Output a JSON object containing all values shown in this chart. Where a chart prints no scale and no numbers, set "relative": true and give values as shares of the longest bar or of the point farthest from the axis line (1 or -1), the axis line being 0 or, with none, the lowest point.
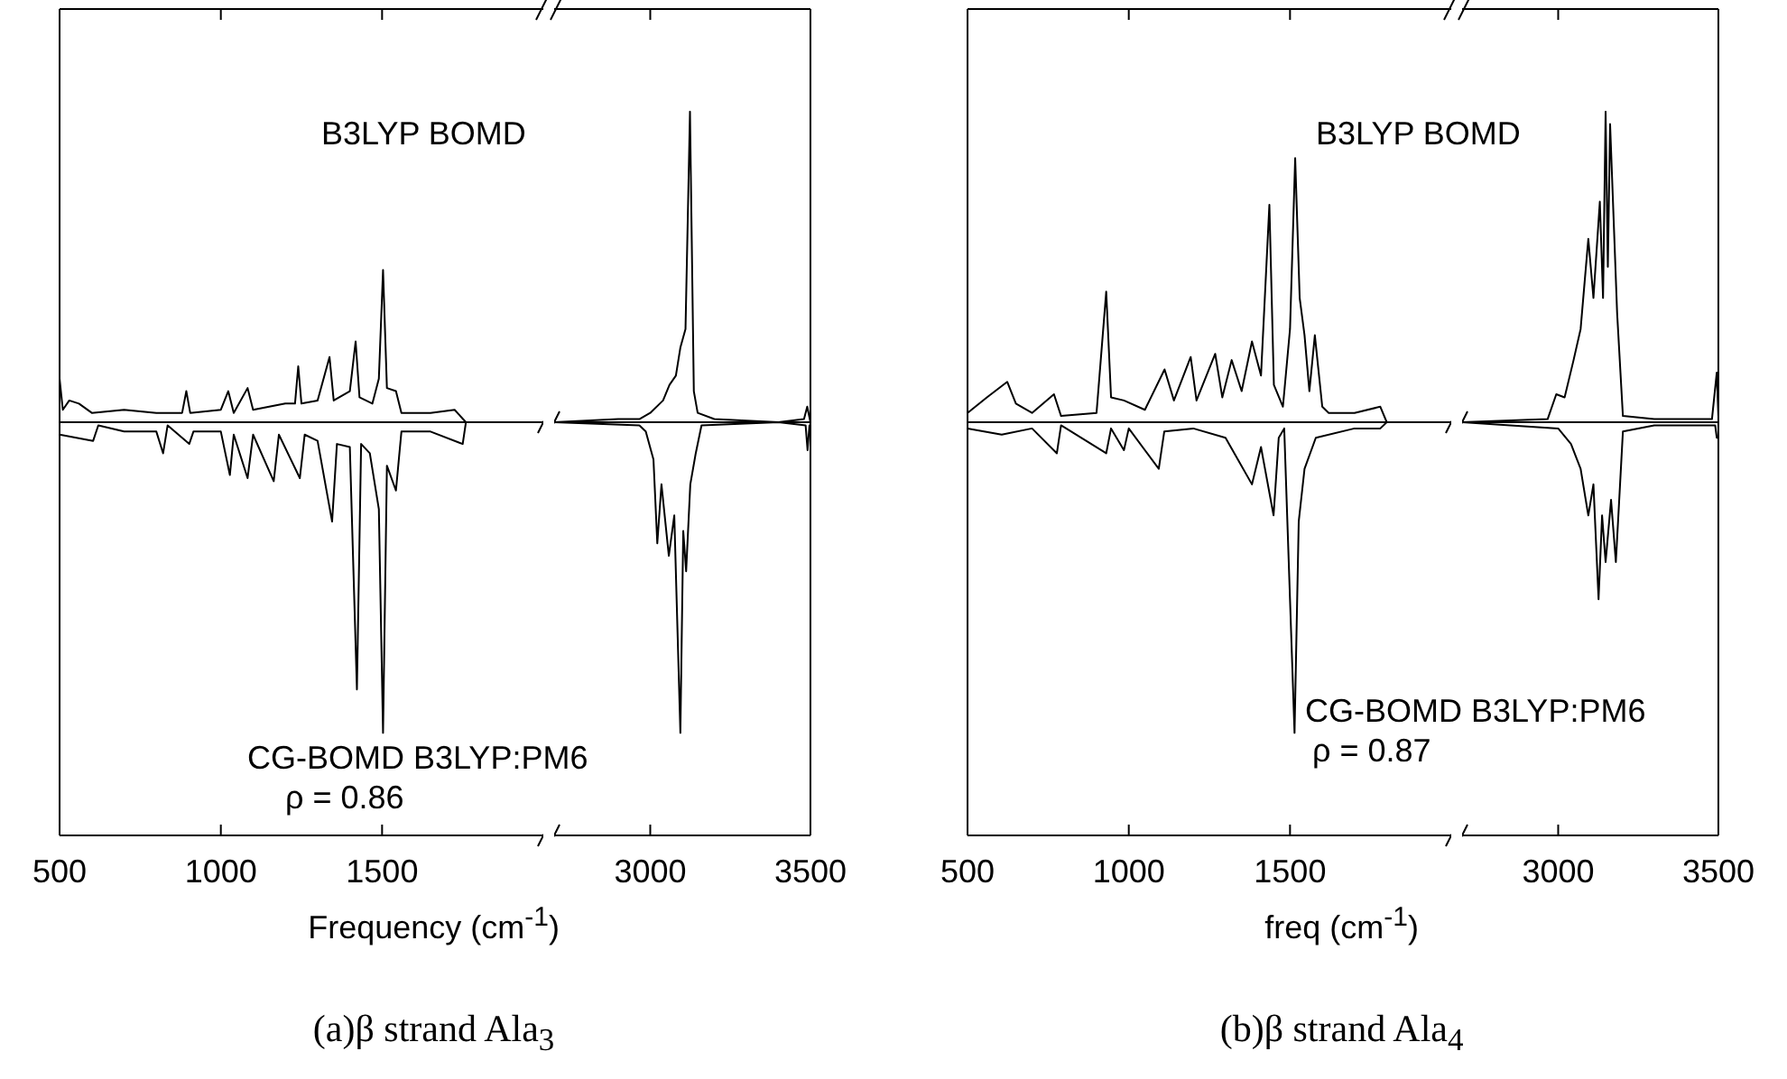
{
  "chart_data": [
    {
      "type": "line",
      "title": "(a)β strand Ala$_{3}$",
      "xlabel": "Frequency (cm$^{-1}$)",
      "relative": true,
      "xlim": [
        500,
        2000
      ],
      "xticks": [
        500,
        1000,
        1500
      ],
      "annotations": [
        "B3LYP BOMD",
        "CG-BOMD B3LYP:PM6",
        "ρ = 0.86"
      ],
      "ref_lines": [
        {
          "axis": "y",
          "value": 0,
          "color": "#000000"
        }
      ],
      "series": [
        {
          "color": "#000000",
          "x": [
            500,
            510,
            530,
            560,
            600,
            700,
            800,
            880,
            893,
            905,
            1000,
            1023,
            1040,
            1083,
            1100,
            1200,
            1230,
            1240,
            1250,
            1300,
            1337,
            1350,
            1400,
            1418,
            1430,
            1470,
            1490,
            1503,
            1515,
            1543,
            1560,
            1650,
            1725,
            1760,
            2000
          ],
          "values": [
            0.14,
            0.04,
            0.07,
            0.06,
            0.03,
            0.04,
            0.03,
            0.03,
            0.1,
            0.03,
            0.04,
            0.1,
            0.03,
            0.11,
            0.04,
            0.06,
            0.06,
            0.18,
            0.06,
            0.07,
            0.21,
            0.07,
            0.1,
            0.26,
            0.08,
            0.06,
            0.14,
            0.49,
            0.11,
            0.1,
            0.03,
            0.03,
            0.04,
            0,
            0
          ]
        },
        {
          "color": "#000000",
          "x": [
            500,
            604,
            620,
            700,
            800,
            821,
            835,
            902,
            915,
            1000,
            1028,
            1040,
            1083,
            1100,
            1164,
            1180,
            1245,
            1260,
            1300,
            1345,
            1360,
            1400,
            1422,
            1435,
            1462,
            1490,
            1503,
            1515,
            1543,
            1560,
            1650,
            1750,
            1760,
            2000
          ],
          "values": [
            -0.04,
            -0.06,
            -0.01,
            -0.03,
            -0.03,
            -0.1,
            -0.01,
            -0.07,
            -0.03,
            -0.03,
            -0.17,
            -0.04,
            -0.18,
            -0.04,
            -0.19,
            -0.04,
            -0.18,
            -0.04,
            -0.06,
            -0.32,
            -0.07,
            -0.08,
            -0.86,
            -0.07,
            -0.1,
            -0.28,
            -1,
            -0.14,
            -0.22,
            -0.03,
            -0.03,
            -0.07,
            0,
            0
          ]
        }
      ]
    },
    {
      "type": "line",
      "relative": true,
      "xlim": [
        2700,
        3500
      ],
      "xticks": [
        3000,
        3500
      ],
      "ref_lines": [
        {
          "axis": "y",
          "value": 0,
          "color": "#000000"
        }
      ],
      "series": [
        {
          "color": "#000000",
          "x": [
            2700,
            2900,
            2966,
            3000,
            3040,
            3060,
            3080,
            3094,
            3110,
            3124,
            3136,
            3148,
            3200,
            3400,
            3480,
            3490,
            3500
          ],
          "values": [
            0,
            0.01,
            0.01,
            0.03,
            0.07,
            0.12,
            0.15,
            0.24,
            0.3,
            1,
            0.1,
            0.03,
            0.01,
            0,
            0.01,
            0.05,
            0
          ]
        },
        {
          "color": "#000000",
          "x": [
            2700,
            2966,
            2986,
            3010,
            3022,
            3035,
            3058,
            3075,
            3094,
            3103,
            3112,
            3125,
            3142,
            3160,
            3400,
            3485,
            3491,
            3497,
            3500
          ],
          "values": [
            0,
            -0.01,
            -0.03,
            -0.12,
            -0.39,
            -0.2,
            -0.43,
            -0.3,
            -1,
            -0.35,
            -0.48,
            -0.2,
            -0.1,
            -0.01,
            0,
            -0.01,
            -0.09,
            -0.01,
            0
          ]
        }
      ]
    },
    {
      "type": "line",
      "title": "(b)β strand Ala$_{4}$",
      "xlabel": "freq (cm$^{-1}$)",
      "relative": true,
      "xlim": [
        500,
        2000
      ],
      "xticks": [
        500,
        1000,
        1500
      ],
      "annotations": [
        "B3LYP BOMD",
        "CG-BOMD B3LYP:PM6",
        "ρ = 0.87"
      ],
      "ref_lines": [
        {
          "axis": "y",
          "value": 0,
          "color": "#000000"
        }
      ],
      "series": [
        {
          "color": "#000000",
          "x": [
            500,
            560,
            623,
            650,
            700,
            768,
            790,
            900,
            930,
            945,
            985,
            1050,
            1111,
            1140,
            1192,
            1210,
            1268,
            1290,
            1319,
            1350,
            1382,
            1410,
            1436,
            1450,
            1478,
            1500,
            1516,
            1530,
            1545,
            1560,
            1577,
            1600,
            1620,
            1700,
            1780,
            1800,
            2000
          ],
          "values": [
            0.03,
            0.08,
            0.13,
            0.06,
            0.03,
            0.09,
            0.02,
            0.03,
            0.42,
            0.08,
            0.07,
            0.04,
            0.17,
            0.07,
            0.21,
            0.07,
            0.22,
            0.08,
            0.2,
            0.1,
            0.26,
            0.15,
            0.7,
            0.12,
            0.05,
            0.3,
            0.85,
            0.4,
            0.28,
            0.1,
            0.28,
            0.05,
            0.03,
            0.03,
            0.05,
            0,
            0
          ]
        },
        {
          "color": "#000000",
          "x": [
            500,
            606,
            700,
            777,
            790,
            930,
            945,
            985,
            1000,
            1093,
            1110,
            1200,
            1300,
            1382,
            1410,
            1449,
            1465,
            1482,
            1514,
            1527,
            1545,
            1580,
            1700,
            1780,
            1800,
            2000
          ],
          "values": [
            -0.02,
            -0.04,
            -0.02,
            -0.1,
            -0.01,
            -0.1,
            -0.02,
            -0.09,
            -0.02,
            -0.15,
            -0.03,
            -0.02,
            -0.05,
            -0.2,
            -0.08,
            -0.3,
            -0.05,
            -0.02,
            -1,
            -0.32,
            -0.15,
            -0.05,
            -0.02,
            -0.02,
            0,
            0
          ]
        }
      ]
    },
    {
      "type": "line",
      "relative": true,
      "xlim": [
        2700,
        3500
      ],
      "xticks": [
        3000,
        3500
      ],
      "ref_lines": [
        {
          "axis": "y",
          "value": 0,
          "color": "#000000"
        }
      ],
      "series": [
        {
          "color": "#000000",
          "x": [
            2700,
            2967,
            2994,
            3020,
            3048,
            3070,
            3094,
            3110,
            3130,
            3140,
            3148,
            3155,
            3162,
            3184,
            3202,
            3300,
            3480,
            3495,
            3500
          ],
          "values": [
            0,
            0.01,
            0.09,
            0.08,
            0.2,
            0.3,
            0.59,
            0.4,
            0.71,
            0.4,
            1,
            0.5,
            0.96,
            0.35,
            0.02,
            0.01,
            0.01,
            0.16,
            0.02
          ]
        },
        {
          "color": "#000000",
          "x": [
            2700,
            3000,
            3040,
            3070,
            3094,
            3110,
            3126,
            3137,
            3148,
            3165,
            3180,
            3202,
            3300,
            3490,
            3495,
            3500
          ],
          "values": [
            0,
            -0.02,
            -0.07,
            -0.15,
            -0.3,
            -0.2,
            -0.57,
            -0.3,
            -0.45,
            -0.25,
            -0.45,
            -0.03,
            -0.01,
            -0.01,
            -0.05,
            0
          ]
        }
      ]
    }
  ]
}
